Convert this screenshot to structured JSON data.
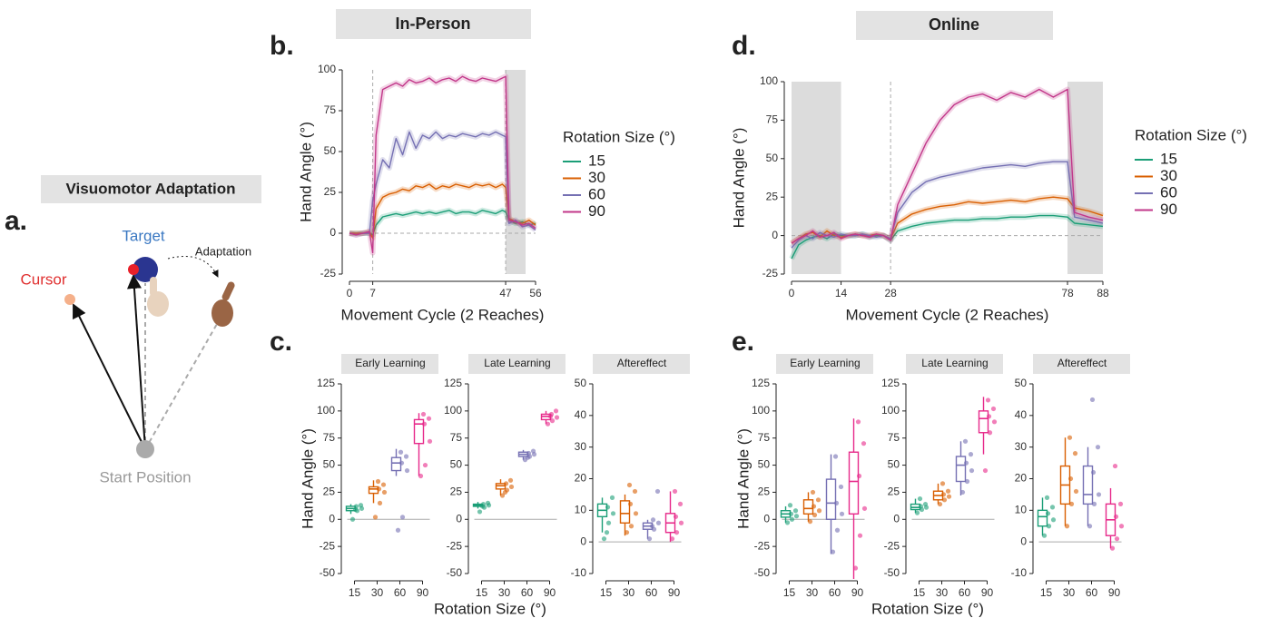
{
  "panel_a": {
    "letter": "a.",
    "title": "Visuomotor Adaptation",
    "target": "Target",
    "adaptation": "Adaptation",
    "cursor": "Cursor",
    "start": "Start Position"
  },
  "letters": [
    "b.",
    "c.",
    "d.",
    "e."
  ],
  "headers": [
    "In-Person",
    "Online"
  ],
  "chart_data": [
    {
      "type": "line",
      "x_label": "Movement Cycle (2 Reaches)",
      "y_label": "Hand Angle (°)",
      "legend_title": "Rotation Size (°)",
      "xlim": [
        0,
        56
      ],
      "xticks": [
        0,
        7,
        47,
        56
      ],
      "ylim": [
        -25,
        100
      ],
      "yticks": [
        -25,
        0,
        25,
        50,
        75,
        100
      ],
      "shaded": [
        [
          47,
          53
        ]
      ],
      "vlines": [
        7,
        47
      ],
      "hline": 0,
      "x": [
        0,
        2,
        4,
        6,
        7,
        8,
        10,
        12,
        14,
        16,
        18,
        20,
        22,
        24,
        26,
        28,
        30,
        32,
        34,
        36,
        38,
        40,
        42,
        44,
        46,
        47,
        48,
        50,
        52,
        54,
        56
      ],
      "series": [
        {
          "name": "15",
          "color": "#1b9e77",
          "values": [
            0,
            0,
            0,
            0,
            -1,
            5,
            10,
            11,
            12,
            11,
            12,
            13,
            12,
            13,
            12,
            13,
            14,
            12,
            13,
            13,
            12,
            14,
            13,
            12,
            14,
            13,
            8,
            6,
            7,
            5,
            6
          ]
        },
        {
          "name": "30",
          "color": "#d95f02",
          "values": [
            0,
            0,
            0,
            1,
            -3,
            15,
            22,
            24,
            25,
            27,
            26,
            29,
            28,
            30,
            27,
            29,
            28,
            30,
            29,
            28,
            30,
            29,
            30,
            28,
            30,
            28,
            9,
            7,
            6,
            8,
            5
          ]
        },
        {
          "name": "60",
          "color": "#7570b3",
          "values": [
            0,
            -1,
            0,
            0,
            20,
            30,
            45,
            40,
            58,
            48,
            62,
            52,
            60,
            58,
            62,
            58,
            60,
            59,
            61,
            60,
            59,
            61,
            60,
            62,
            60,
            59,
            6,
            8,
            4,
            5,
            2
          ]
        },
        {
          "name": "90",
          "color": "#c2378a",
          "values": [
            0,
            -1,
            0,
            1,
            -12,
            60,
            88,
            90,
            92,
            90,
            94,
            92,
            93,
            95,
            92,
            94,
            95,
            93,
            96,
            94,
            93,
            95,
            94,
            93,
            95,
            96,
            8,
            7,
            5,
            6,
            3
          ]
        }
      ]
    },
    {
      "type": "line",
      "x_label": "Movement Cycle (2 Reaches)",
      "y_label": "Hand Angle (°)",
      "legend_title": "Rotation Size (°)",
      "xlim": [
        0,
        88
      ],
      "xticks": [
        0,
        14,
        28,
        78,
        88
      ],
      "ylim": [
        -25,
        100
      ],
      "yticks": [
        -25,
        0,
        25,
        50,
        75,
        100
      ],
      "shaded": [
        [
          0,
          14
        ],
        [
          78,
          88
        ]
      ],
      "vlines": [
        28
      ],
      "hline": 0,
      "x": [
        0,
        2,
        4,
        6,
        8,
        10,
        12,
        14,
        16,
        18,
        20,
        22,
        24,
        26,
        28,
        30,
        34,
        38,
        42,
        46,
        50,
        54,
        58,
        62,
        66,
        70,
        74,
        78,
        80,
        84,
        88
      ],
      "series": [
        {
          "name": "15",
          "color": "#1b9e77",
          "values": [
            -15,
            -6,
            -3,
            -1,
            0,
            -2,
            1,
            0,
            0,
            0,
            1,
            -1,
            0,
            0,
            -3,
            3,
            6,
            8,
            9,
            10,
            10,
            11,
            11,
            12,
            12,
            13,
            13,
            12,
            8,
            7,
            6
          ]
        },
        {
          "name": "30",
          "color": "#d95f02",
          "values": [
            -5,
            -2,
            1,
            2,
            -1,
            3,
            0,
            -1,
            0,
            1,
            0,
            0,
            1,
            0,
            -2,
            8,
            14,
            17,
            19,
            20,
            22,
            21,
            22,
            23,
            22,
            24,
            25,
            24,
            18,
            16,
            13
          ]
        },
        {
          "name": "60",
          "color": "#7570b3",
          "values": [
            -8,
            -3,
            0,
            -2,
            2,
            0,
            -1,
            1,
            0,
            0,
            1,
            0,
            -1,
            0,
            -2,
            15,
            28,
            35,
            38,
            40,
            42,
            44,
            45,
            46,
            45,
            47,
            48,
            48,
            12,
            10,
            8
          ]
        },
        {
          "name": "90",
          "color": "#c2378a",
          "values": [
            -5,
            -2,
            0,
            3,
            -1,
            0,
            2,
            -2,
            0,
            1,
            0,
            -1,
            1,
            0,
            -3,
            20,
            40,
            60,
            75,
            85,
            90,
            92,
            88,
            93,
            90,
            95,
            90,
            95,
            15,
            12,
            10
          ]
        }
      ]
    },
    {
      "type": "box",
      "title": "Early Learning",
      "y_label": "Hand Angle (°)",
      "categories": [
        "15",
        "30",
        "60",
        "90"
      ],
      "colors": [
        "#1b9e77",
        "#d95f02",
        "#7570b3",
        "#e7298a"
      ],
      "ylim": [
        -50,
        125
      ],
      "yticks": [
        -50,
        -25,
        0,
        25,
        50,
        75,
        100,
        125
      ],
      "hline": 0,
      "boxes": [
        {
          "whislo": 5,
          "q1": 8,
          "med": 10,
          "q3": 12,
          "whishi": 14,
          "points": [
            0,
            8,
            10,
            12,
            13,
            9
          ]
        },
        {
          "whislo": 15,
          "q1": 24,
          "med": 28,
          "q3": 30,
          "whishi": 36,
          "points": [
            2,
            15,
            25,
            28,
            32,
            35
          ]
        },
        {
          "whislo": 40,
          "q1": 45,
          "med": 52,
          "q3": 57,
          "whishi": 65,
          "points": [
            -10,
            2,
            45,
            52,
            58,
            62
          ]
        },
        {
          "whislo": 40,
          "q1": 70,
          "med": 88,
          "q3": 92,
          "whishi": 98,
          "points": [
            40,
            50,
            72,
            88,
            93,
            97
          ]
        }
      ]
    },
    {
      "type": "box",
      "title": "Late Learning",
      "x_label": "Rotation Size (°)",
      "categories": [
        "15",
        "30",
        "60",
        "90"
      ],
      "colors": [
        "#1b9e77",
        "#d95f02",
        "#7570b3",
        "#e7298a"
      ],
      "ylim": [
        -50,
        125
      ],
      "yticks": [
        -50,
        -25,
        0,
        25,
        50,
        75,
        100,
        125
      ],
      "hline": 0,
      "boxes": [
        {
          "whislo": 10,
          "q1": 12,
          "med": 13,
          "q3": 14,
          "whishi": 16,
          "points": [
            7,
            11,
            13,
            14,
            15,
            12
          ]
        },
        {
          "whislo": 22,
          "q1": 28,
          "med": 31,
          "q3": 33,
          "whishi": 37,
          "points": [
            22,
            27,
            30,
            33,
            36,
            25
          ]
        },
        {
          "whislo": 55,
          "q1": 58,
          "med": 60,
          "q3": 62,
          "whishi": 64,
          "points": [
            55,
            58,
            60,
            61,
            63,
            57
          ]
        },
        {
          "whislo": 88,
          "q1": 92,
          "med": 95,
          "q3": 97,
          "whishi": 100,
          "points": [
            88,
            91,
            94,
            97,
            100,
            95
          ]
        }
      ]
    },
    {
      "type": "box",
      "title": "Aftereffect",
      "categories": [
        "15",
        "30",
        "60",
        "90"
      ],
      "colors": [
        "#1b9e77",
        "#d95f02",
        "#7570b3",
        "#e7298a"
      ],
      "ylim": [
        -10,
        50
      ],
      "yticks": [
        -10,
        0,
        10,
        20,
        30,
        40,
        50
      ],
      "hline": 0,
      "boxes": [
        {
          "whislo": 3,
          "q1": 8,
          "med": 10,
          "q3": 12,
          "whishi": 14,
          "points": [
            1,
            6,
            9,
            11,
            14,
            3
          ]
        },
        {
          "whislo": 2,
          "q1": 6,
          "med": 9,
          "q3": 13,
          "whishi": 15,
          "points": [
            3,
            5,
            9,
            12,
            16,
            18
          ]
        },
        {
          "whislo": 1,
          "q1": 4,
          "med": 5,
          "q3": 6,
          "whishi": 7,
          "points": [
            1,
            4,
            6,
            7,
            16,
            5
          ]
        },
        {
          "whislo": 0,
          "q1": 3,
          "med": 6,
          "q3": 9,
          "whishi": 16,
          "points": [
            1,
            3,
            6,
            8,
            12,
            16
          ]
        }
      ]
    },
    {
      "type": "box",
      "title": "Early Learning",
      "y_label": "Hand Angle (°)",
      "categories": [
        "15",
        "30",
        "60",
        "90"
      ],
      "colors": [
        "#1b9e77",
        "#d95f02",
        "#7570b3",
        "#e7298a"
      ],
      "ylim": [
        -50,
        125
      ],
      "yticks": [
        -50,
        -25,
        0,
        25,
        50,
        75,
        100,
        125
      ],
      "hline": 0,
      "boxes": [
        {
          "whislo": -3,
          "q1": 2,
          "med": 5,
          "q3": 8,
          "whishi": 12,
          "points": [
            -3,
            0,
            3,
            5,
            8,
            13
          ]
        },
        {
          "whislo": -2,
          "q1": 5,
          "med": 10,
          "q3": 18,
          "whishi": 25,
          "points": [
            -2,
            4,
            8,
            12,
            18,
            25
          ]
        },
        {
          "whislo": -32,
          "q1": 0,
          "med": 15,
          "q3": 37,
          "whishi": 60,
          "points": [
            -30,
            -10,
            5,
            15,
            30,
            58
          ]
        },
        {
          "whislo": -55,
          "q1": 5,
          "med": 35,
          "q3": 62,
          "whishi": 93,
          "points": [
            -45,
            -15,
            10,
            40,
            70,
            90
          ]
        }
      ]
    },
    {
      "type": "box",
      "title": "Late Learning",
      "x_label": "Rotation Size (°)",
      "categories": [
        "15",
        "30",
        "60",
        "90"
      ],
      "colors": [
        "#1b9e77",
        "#d95f02",
        "#7570b3",
        "#e7298a"
      ],
      "ylim": [
        -50,
        125
      ],
      "yticks": [
        -50,
        -25,
        0,
        25,
        50,
        75,
        100,
        125
      ],
      "hline": 0,
      "boxes": [
        {
          "whislo": 6,
          "q1": 9,
          "med": 11,
          "q3": 14,
          "whishi": 19,
          "points": [
            6,
            9,
            11,
            12,
            14,
            19
          ]
        },
        {
          "whislo": 14,
          "q1": 18,
          "med": 22,
          "q3": 26,
          "whishi": 33,
          "points": [
            14,
            18,
            21,
            23,
            26,
            33
          ]
        },
        {
          "whislo": 22,
          "q1": 35,
          "med": 50,
          "q3": 58,
          "whishi": 72,
          "points": [
            25,
            35,
            45,
            52,
            60,
            72
          ]
        },
        {
          "whislo": 60,
          "q1": 80,
          "med": 93,
          "q3": 100,
          "whishi": 113,
          "points": [
            45,
            80,
            90,
            95,
            102,
            110
          ]
        }
      ]
    },
    {
      "type": "box",
      "title": "Aftereffect",
      "categories": [
        "15",
        "30",
        "60",
        "90"
      ],
      "colors": [
        "#1b9e77",
        "#d95f02",
        "#7570b3",
        "#e7298a"
      ],
      "ylim": [
        -10,
        50
      ],
      "yticks": [
        -10,
        0,
        10,
        20,
        30,
        40,
        50
      ],
      "hline": 0,
      "boxes": [
        {
          "whislo": 2,
          "q1": 5,
          "med": 8,
          "q3": 10,
          "whishi": 14,
          "points": [
            2,
            5,
            7,
            9,
            11,
            14
          ]
        },
        {
          "whislo": 5,
          "q1": 12,
          "med": 18,
          "q3": 24,
          "whishi": 33,
          "points": [
            5,
            12,
            16,
            20,
            28,
            33
          ]
        },
        {
          "whislo": 5,
          "q1": 12,
          "med": 15,
          "q3": 24,
          "whishi": 30,
          "points": [
            5,
            12,
            15,
            22,
            30,
            45
          ]
        },
        {
          "whislo": -2,
          "q1": 2,
          "med": 7,
          "q3": 12,
          "whishi": 17,
          "points": [
            -2,
            1,
            5,
            8,
            12,
            24
          ]
        }
      ]
    }
  ]
}
